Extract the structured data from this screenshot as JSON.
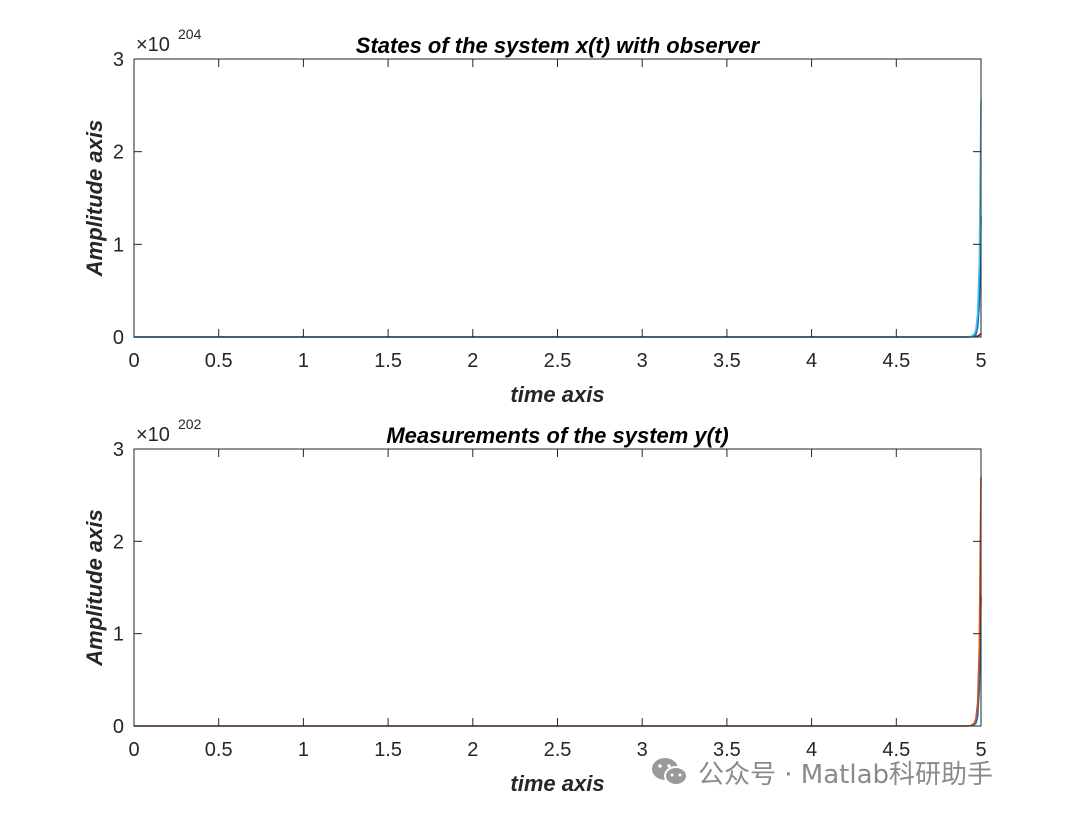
{
  "chart_data": [
    {
      "type": "line",
      "title": "States of the system x(t) with observer",
      "xlabel": "time axis",
      "ylabel": "Amplitude axis",
      "xlim": [
        0,
        5
      ],
      "ylim": [
        0,
        3
      ],
      "x_ticks": [
        "0",
        "0.5",
        "1",
        "1.5",
        "2",
        "2.5",
        "3",
        "3.5",
        "4",
        "4.5",
        "5"
      ],
      "y_ticks": [
        "0",
        "1",
        "2",
        "3"
      ],
      "y_multiplier": {
        "base": "×10",
        "exponent": "204"
      },
      "grid": false,
      "series": [
        {
          "color": "#A2142F",
          "x": [
            0,
            4.9,
            4.95,
            4.98,
            4.99,
            5.0
          ],
          "y": [
            0,
            0,
            0.002,
            0.01,
            0.02,
            0.04
          ]
        },
        {
          "color": "#0072BD",
          "x": [
            0,
            4.9,
            4.95,
            4.97,
            4.98,
            4.99,
            5.0
          ],
          "y": [
            0,
            0,
            0.003,
            0.03,
            0.1,
            0.35,
            1.3
          ]
        },
        {
          "color": "#4DBEEE",
          "x": [
            0,
            4.9,
            4.94,
            4.96,
            4.97,
            4.98,
            4.99,
            5.0
          ],
          "y": [
            0,
            0,
            0.005,
            0.03,
            0.08,
            0.25,
            0.8,
            2.55
          ]
        }
      ]
    },
    {
      "type": "line",
      "title": "Measurements of the system y(t)",
      "xlabel": "time axis",
      "ylabel": "Amplitude axis",
      "xlim": [
        0,
        5
      ],
      "ylim": [
        0,
        3
      ],
      "x_ticks": [
        "0",
        "0.5",
        "1",
        "1.5",
        "2",
        "2.5",
        "3",
        "3.5",
        "4",
        "4.5",
        "5"
      ],
      "y_ticks": [
        "0",
        "1",
        "2",
        "3"
      ],
      "y_multiplier": {
        "base": "×10",
        "exponent": "202"
      },
      "grid": false,
      "series": [
        {
          "color": "#0072BD",
          "x": [
            0,
            4.9,
            4.95,
            4.97,
            4.98,
            4.99,
            5.0
          ],
          "y": [
            0,
            0,
            0.003,
            0.03,
            0.1,
            0.4,
            1.4
          ]
        },
        {
          "color": "#D95319",
          "x": [
            0,
            4.9,
            4.94,
            4.96,
            4.97,
            4.98,
            4.99,
            5.0
          ],
          "y": [
            0,
            0,
            0.005,
            0.03,
            0.08,
            0.25,
            0.85,
            2.7
          ]
        }
      ]
    }
  ],
  "watermark": {
    "icon": "wechat-icon",
    "text": "公众号 · Matlab科研助手"
  }
}
